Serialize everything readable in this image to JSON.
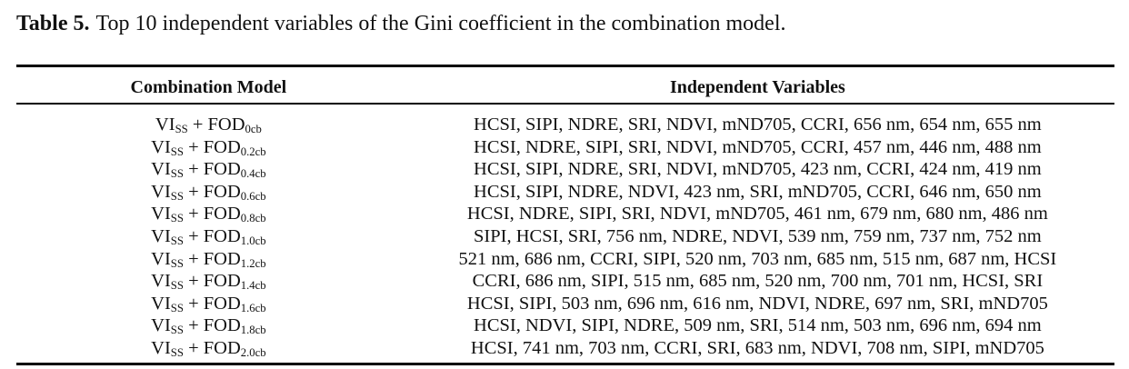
{
  "caption": {
    "label": "Table 5.",
    "text": "Top 10 independent variables of the Gini coefficient in the combination model."
  },
  "table": {
    "headers": [
      "Combination Model",
      "Independent Variables"
    ],
    "rows": [
      {
        "vi": "VI",
        "vi_sub": "SS",
        "plus": "+",
        "fod": "FOD",
        "fod_sub": "0cb",
        "variables": "HCSI, SIPI, NDRE, SRI, NDVI, mND705, CCRI, 656 nm, 654 nm, 655 nm"
      },
      {
        "vi": "VI",
        "vi_sub": "SS",
        "plus": "+",
        "fod": "FOD",
        "fod_sub": "0.2cb",
        "variables": "HCSI, NDRE, SIPI, SRI, NDVI, mND705, CCRI, 457 nm, 446 nm, 488 nm"
      },
      {
        "vi": "VI",
        "vi_sub": "SS",
        "plus": "+",
        "fod": "FOD",
        "fod_sub": "0.4cb",
        "variables": "HCSI, SIPI, NDRE, SRI, NDVI, mND705, 423 nm, CCRI, 424 nm, 419 nm"
      },
      {
        "vi": "VI",
        "vi_sub": "SS",
        "plus": "+",
        "fod": "FOD",
        "fod_sub": "0.6cb",
        "variables": "HCSI, SIPI, NDRE, NDVI, 423 nm, SRI, mND705, CCRI, 646 nm, 650 nm"
      },
      {
        "vi": "VI",
        "vi_sub": "SS",
        "plus": "+",
        "fod": "FOD",
        "fod_sub": "0.8cb",
        "variables": "HCSI, NDRE, SIPI, SRI, NDVI, mND705, 461 nm, 679 nm, 680 nm, 486 nm"
      },
      {
        "vi": "VI",
        "vi_sub": "SS",
        "plus": "+",
        "fod": "FOD",
        "fod_sub": "1.0cb",
        "variables": "SIPI, HCSI, SRI, 756 nm, NDRE, NDVI, 539 nm, 759 nm, 737 nm, 752 nm"
      },
      {
        "vi": "VI",
        "vi_sub": "SS",
        "plus": "+",
        "fod": "FOD",
        "fod_sub": "1.2cb",
        "variables": "521 nm, 686 nm, CCRI, SIPI, 520 nm, 703 nm, 685 nm, 515 nm, 687 nm, HCSI"
      },
      {
        "vi": "VI",
        "vi_sub": "SS",
        "plus": "+",
        "fod": "FOD",
        "fod_sub": "1.4cb",
        "variables": "CCRI, 686 nm, SIPI, 515 nm, 685 nm, 520 nm, 700 nm, 701 nm, HCSI, SRI"
      },
      {
        "vi": "VI",
        "vi_sub": "SS",
        "plus": "+",
        "fod": "FOD",
        "fod_sub": "1.6cb",
        "variables": "HCSI, SIPI, 503 nm, 696 nm, 616 nm, NDVI, NDRE, 697 nm, SRI, mND705"
      },
      {
        "vi": "VI",
        "vi_sub": "SS",
        "plus": "+",
        "fod": "FOD",
        "fod_sub": "1.8cb",
        "variables": "HCSI, NDVI, SIPI, NDRE, 509 nm, SRI, 514 nm, 503 nm, 696 nm, 694 nm"
      },
      {
        "vi": "VI",
        "vi_sub": "SS",
        "plus": "+",
        "fod": "FOD",
        "fod_sub": "2.0cb",
        "variables": "HCSI, 741 nm, 703 nm, CCRI, SRI, 683 nm, NDVI, 708 nm, SIPI, mND705"
      }
    ]
  },
  "colors": {
    "text": "#111111",
    "rule": "#000000",
    "background": "#ffffff"
  }
}
